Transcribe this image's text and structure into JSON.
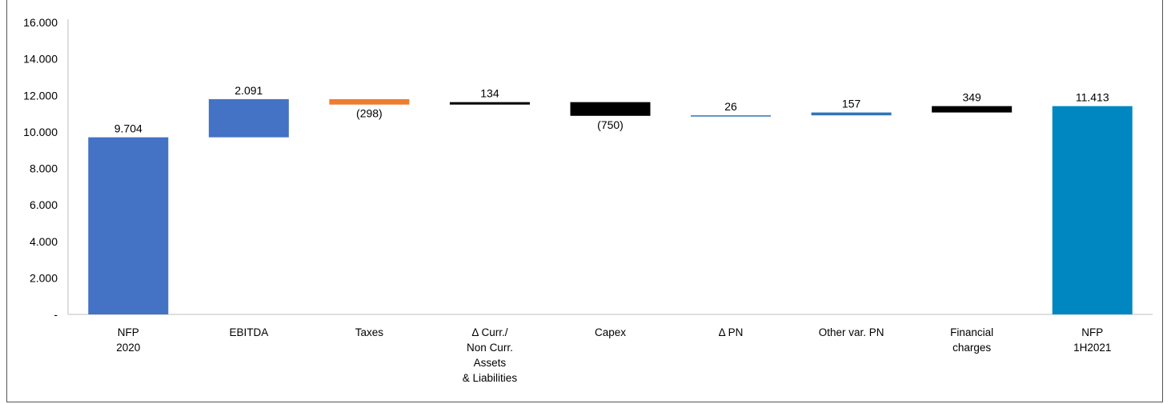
{
  "chart_data": {
    "type": "bar",
    "subtype": "waterfall",
    "ylim": [
      0,
      16000
    ],
    "y_ticks": [
      "-",
      "2.000",
      "4.000",
      "6.000",
      "8.000",
      "10.000",
      "12.000",
      "14.000",
      "16.000"
    ],
    "y_tick_values": [
      0,
      2000,
      4000,
      6000,
      8000,
      10000,
      12000,
      14000,
      16000
    ],
    "grid": false,
    "categories": [
      [
        "NFP",
        "2020"
      ],
      [
        "EBITDA"
      ],
      [
        "Taxes"
      ],
      [
        "Δ Curr./",
        "Non Curr.",
        "Assets",
        "& Liabilities"
      ],
      [
        "Capex"
      ],
      [
        "Δ PN"
      ],
      [
        "Other var. PN"
      ],
      [
        "Financial",
        "charges"
      ],
      [
        "NFP",
        "1H2021"
      ]
    ],
    "bars": [
      {
        "start": 0,
        "end": 9704,
        "label": "9.704",
        "color": "#4472C4",
        "label_pos": "above"
      },
      {
        "start": 9704,
        "end": 11795,
        "label": "2.091",
        "color": "#4472C4",
        "label_pos": "above"
      },
      {
        "start": 11795,
        "end": 11497,
        "label": "(298)",
        "color": "#ED7D31",
        "label_pos": "below"
      },
      {
        "start": 11497,
        "end": 11631,
        "label": "134",
        "color": "#000000",
        "label_pos": "above"
      },
      {
        "start": 11631,
        "end": 10881,
        "label": "(750)",
        "color": "#000000",
        "label_pos": "below"
      },
      {
        "start": 10881,
        "end": 10907,
        "label": "26",
        "color": "#2E75B6",
        "label_pos": "above"
      },
      {
        "start": 10907,
        "end": 11064,
        "label": "157",
        "color": "#2E75B6",
        "label_pos": "above"
      },
      {
        "start": 11064,
        "end": 11413,
        "label": "349",
        "color": "#000000",
        "label_pos": "above"
      },
      {
        "start": 0,
        "end": 11413,
        "label": "11.413",
        "color": "#0087C1",
        "label_pos": "above"
      }
    ]
  }
}
